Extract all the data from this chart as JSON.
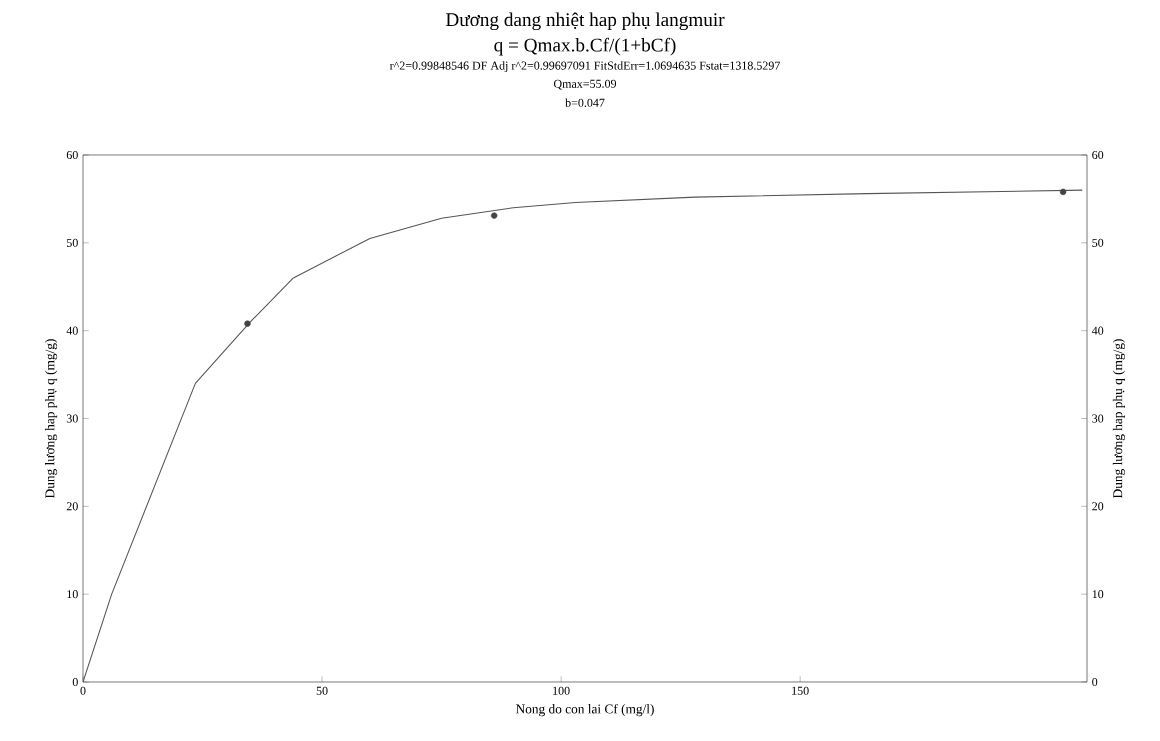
{
  "chart_data": {
    "type": "line",
    "title": "Dương dang nhiệt hap phụ langmuir",
    "subtitle": "q = Qmax.b.Cf/(1+bCf)",
    "annotations": [
      "r^2=0.99848546 DF Adj r^2=0.99697091 FitStdErr=1.0694635 Fstat=1318.5297",
      "Qmax=55.09",
      "b=0.047"
    ],
    "xlabel": "Nong do con lai Cf (mg/l)",
    "ylabel": "Dung lương hap phụ q (mg/g)",
    "y2label": "Dung lương hap phụ q (mg/g)",
    "series": [
      {
        "color": "#555555",
        "x": [
          0,
          6,
          23.5,
          35,
          44,
          60,
          75,
          90,
          103,
          128,
          164,
          209
        ],
        "values": [
          0,
          10,
          34,
          41,
          46,
          50.5,
          52.8,
          54,
          54.6,
          55.2,
          55.6,
          56
        ]
      },
      {
        "type": "scatter",
        "color": "#444444",
        "x": [
          34.4,
          86,
          205
        ],
        "values": [
          40.8,
          53.1,
          55.8
        ]
      }
    ],
    "xlim": [
      0,
      210
    ],
    "ylim": [
      0,
      60
    ],
    "y2lim": [
      0,
      60
    ],
    "xticks": [
      0,
      50,
      100,
      150
    ],
    "yticks": [
      0,
      10,
      20,
      30,
      40,
      50,
      60
    ],
    "y2ticks": [
      0,
      10,
      20,
      30,
      40,
      50,
      60
    ],
    "grid": false
  }
}
